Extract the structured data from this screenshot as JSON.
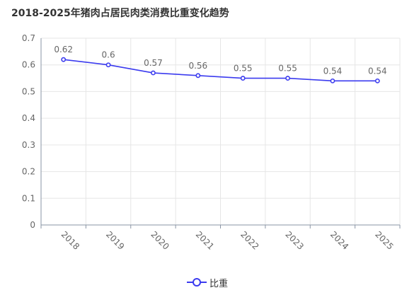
{
  "chart_data": {
    "type": "line",
    "title": "2018-2025年猪肉占居民肉类消费比重变化趋势",
    "categories": [
      "2018",
      "2019",
      "2020",
      "2021",
      "2022",
      "2023",
      "2024",
      "2025"
    ],
    "series": [
      {
        "name": "比重",
        "values": [
          0.62,
          0.6,
          0.57,
          0.56,
          0.55,
          0.55,
          0.54,
          0.54
        ],
        "labels": [
          "0.62",
          "0.6",
          "0.57",
          "0.56",
          "0.55",
          "0.55",
          "0.54",
          "0.54"
        ]
      }
    ],
    "ylim": [
      0,
      0.7
    ],
    "yticks": [
      "0",
      "0.1",
      "0.2",
      "0.3",
      "0.4",
      "0.5",
      "0.6",
      "0.7"
    ],
    "xlabel": "",
    "ylabel": "",
    "grid": true,
    "legend": "bottom-center",
    "colors": {
      "line": "#3b3bef",
      "grid": "#e6e6e6",
      "axis": "#8a95a5",
      "text": "#666666"
    }
  }
}
